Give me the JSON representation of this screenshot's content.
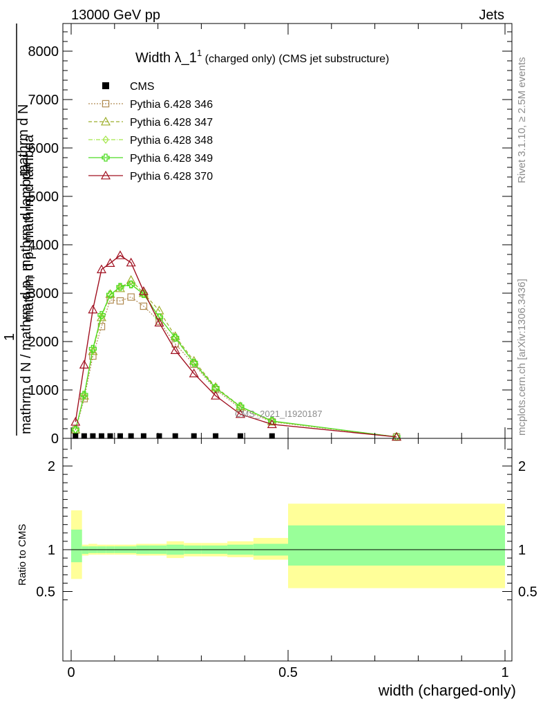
{
  "header": {
    "left": "13000 GeV pp",
    "right": "Jets"
  },
  "side_labels": {
    "rivet": "Rivet 3.1.10, ≥ 2.5M events",
    "mcplots": "mcplots.cern.ch [arXiv:1306.3436]"
  },
  "watermark": "CMS_2021_I1920187",
  "main_title": {
    "text": "Width λ_1",
    "sup": "1",
    "suffix": " (charged only) (CMS jet substructure)"
  },
  "y_label_main": {
    "numerator": "1",
    "denominator": "mathrm d N / mathrm d p",
    "sub": "T",
    "rest": " mathrm d lambda",
    "pre": "mathrm d",
    "second_line": "mathrm d p",
    "second_sub": "T",
    "second_rest": " mathrm d lambda",
    "top": "mathrm d",
    "top2": "N"
  },
  "y_label_main_lines": {
    "line1": "mathrm d",
    "line1b": "N",
    "line2": "mathrm d p",
    "line2sub": "T",
    "line2b": " mathrm d lambda",
    "line3": "1",
    "line4": "mathrm d N / mathrm d p",
    "line4sub": "T",
    "line4b": " mathrm d lambda"
  },
  "y_label_ratio": "Ratio to CMS",
  "x_label": "width (charged-only)",
  "colors": {
    "cms": "#000000",
    "p346": "#b08a50",
    "p347": "#9cae2a",
    "p348": "#a4e64a",
    "p349": "#4cdc20",
    "p370": "#a01020",
    "band_outer": "#ffff99",
    "band_inner": "#99ff99"
  },
  "chart_data": {
    "type": "line",
    "xlim": [
      0,
      1
    ],
    "main_ylim": [
      0,
      8500
    ],
    "ratio_ylim": [
      0.35,
      2.3
    ],
    "x_ticks": [
      "0",
      "0.5",
      "1"
    ],
    "main_y_ticks": [
      "0",
      "1000",
      "2000",
      "3000",
      "4000",
      "5000",
      "6000",
      "7000",
      "8000"
    ],
    "ratio_y_ticks": [
      "0.5",
      "1",
      "2"
    ],
    "legend_placement": "top-left",
    "cms": {
      "name": "CMS",
      "x": [
        0.01,
        0.03,
        0.05,
        0.07,
        0.09,
        0.113,
        0.138,
        0.167,
        0.203,
        0.24,
        0.283,
        0.333,
        0.39,
        0.463
      ],
      "y": [
        5,
        5,
        5,
        5,
        5,
        5,
        5,
        5,
        5,
        5,
        5,
        5,
        5,
        5
      ]
    },
    "series": [
      {
        "name": "Pythia 6.428 346",
        "marker": "square",
        "x": [
          0.01,
          0.03,
          0.05,
          0.07,
          0.09,
          0.113,
          0.138,
          0.167,
          0.203,
          0.24,
          0.283,
          0.333,
          0.39,
          0.463,
          0.75
        ],
        "y": [
          170,
          820,
          1700,
          2310,
          2860,
          2840,
          2920,
          2730,
          2420,
          1950,
          1530,
          1010,
          620,
          340,
          30
        ]
      },
      {
        "name": "Pythia 6.428 347",
        "marker": "triangle",
        "x": [
          0.01,
          0.03,
          0.05,
          0.07,
          0.09,
          0.113,
          0.138,
          0.167,
          0.203,
          0.24,
          0.283,
          0.333,
          0.39,
          0.463,
          0.75
        ],
        "y": [
          180,
          880,
          1800,
          2500,
          2980,
          3100,
          3270,
          3000,
          2640,
          2110,
          1600,
          1060,
          660,
          350,
          30
        ]
      },
      {
        "name": "Pythia 6.428 348",
        "marker": "diamond",
        "x": [
          0.01,
          0.03,
          0.05,
          0.07,
          0.09,
          0.113,
          0.138,
          0.167,
          0.203,
          0.24,
          0.283,
          0.333,
          0.39,
          0.463,
          0.75
        ],
        "y": [
          180,
          890,
          1820,
          2520,
          2960,
          3130,
          3180,
          3000,
          2500,
          2070,
          1560,
          1040,
          650,
          350,
          30
        ]
      },
      {
        "name": "Pythia 6.428 349",
        "marker": "cross",
        "x": [
          0.01,
          0.03,
          0.05,
          0.07,
          0.09,
          0.113,
          0.138,
          0.167,
          0.203,
          0.24,
          0.283,
          0.333,
          0.39,
          0.463,
          0.75
        ],
        "y": [
          180,
          900,
          1850,
          2550,
          2970,
          3130,
          3180,
          2980,
          2500,
          2080,
          1560,
          1040,
          660,
          360,
          30
        ]
      },
      {
        "name": "Pythia 6.428 370",
        "marker": "triangle",
        "x": [
          0.01,
          0.03,
          0.05,
          0.07,
          0.09,
          0.113,
          0.138,
          0.167,
          0.203,
          0.24,
          0.283,
          0.333,
          0.39,
          0.463,
          0.75
        ],
        "y": [
          340,
          1520,
          2660,
          3490,
          3620,
          3780,
          3630,
          3040,
          2390,
          1820,
          1340,
          880,
          500,
          290,
          30
        ]
      }
    ],
    "ratio_bands": {
      "edges": [
        0.0,
        0.025,
        0.04,
        0.06,
        0.08,
        0.1,
        0.125,
        0.15,
        0.18,
        0.22,
        0.26,
        0.3,
        0.36,
        0.42,
        0.5,
        1.0
      ],
      "outer_lo": [
        0.65,
        0.93,
        0.94,
        0.94,
        0.94,
        0.94,
        0.94,
        0.93,
        0.93,
        0.9,
        0.92,
        0.92,
        0.91,
        0.88,
        0.54
      ],
      "outer_hi": [
        1.47,
        1.06,
        1.07,
        1.06,
        1.06,
        1.06,
        1.06,
        1.07,
        1.07,
        1.1,
        1.08,
        1.08,
        1.1,
        1.14,
        1.55
      ],
      "inner_lo": [
        0.85,
        0.95,
        0.96,
        0.96,
        0.96,
        0.96,
        0.96,
        0.95,
        0.95,
        0.94,
        0.95,
        0.95,
        0.94,
        0.93,
        0.81
      ],
      "inner_hi": [
        1.24,
        1.04,
        1.04,
        1.04,
        1.04,
        1.04,
        1.04,
        1.05,
        1.05,
        1.06,
        1.05,
        1.05,
        1.06,
        1.07,
        1.29
      ]
    }
  }
}
